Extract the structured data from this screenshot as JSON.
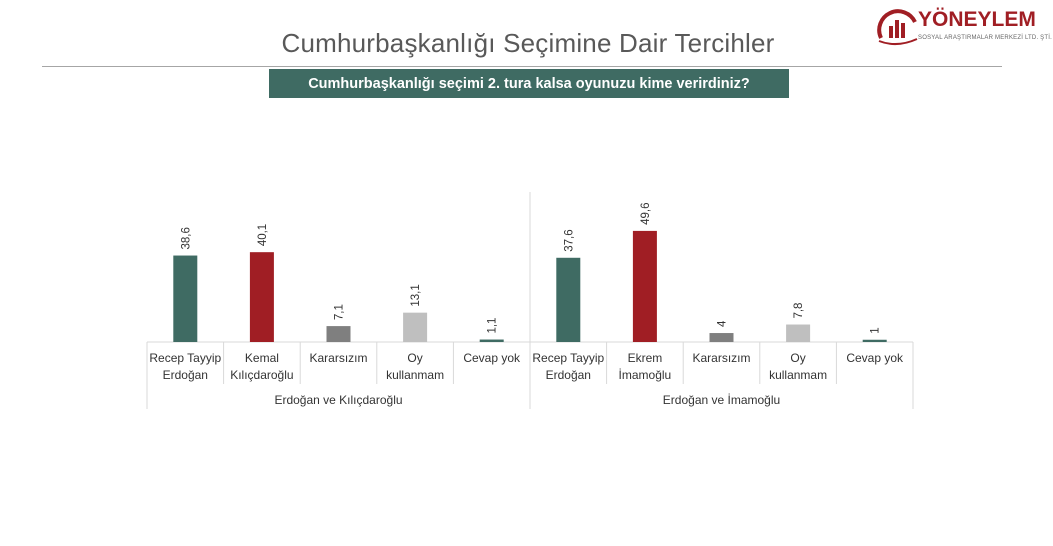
{
  "page": {
    "title": "Cumhurbaşkanlığı Seçimine Dair Tercihler",
    "question": "Cumhurbaşkanlığı seçimi 2. tura kalsa oyunuzu kime verirdiniz?"
  },
  "logo": {
    "name": "YÖNEYLEM",
    "subtitle": "SOSYAL ARAŞTIRMALAR MERKEZİ LTD. ŞTİ."
  },
  "colors": {
    "green": "#3f6b63",
    "red": "#a01e24",
    "dark_gray": "#7f7f7f",
    "light_gray": "#bfbfbf",
    "axis": "#d9d9d9"
  },
  "chart_data": {
    "type": "bar",
    "groups": [
      {
        "label": "Erdoğan ve Kılıçdaroğlu",
        "categories": [
          {
            "label": [
              "Recep Tayyip",
              "Erdoğan"
            ],
            "value": 38.6,
            "display": "38,6",
            "color": "#3f6b63"
          },
          {
            "label": [
              "Kemal",
              "Kılıçdaroğlu"
            ],
            "value": 40.1,
            "display": "40,1",
            "color": "#a01e24"
          },
          {
            "label": [
              "Kararsızım"
            ],
            "value": 7.1,
            "display": "7,1",
            "color": "#7f7f7f"
          },
          {
            "label": [
              "Oy",
              "kullanmam"
            ],
            "value": 13.1,
            "display": "13,1",
            "color": "#bfbfbf"
          },
          {
            "label": [
              "Cevap yok"
            ],
            "value": 1.1,
            "display": "1,1",
            "color": "#3f6b63"
          }
        ]
      },
      {
        "label": "Erdoğan ve İmamoğlu",
        "categories": [
          {
            "label": [
              "Recep Tayyip",
              "Erdoğan"
            ],
            "value": 37.6,
            "display": "37,6",
            "color": "#3f6b63"
          },
          {
            "label": [
              "Ekrem",
              "İmamoğlu"
            ],
            "value": 49.6,
            "display": "49,6",
            "color": "#a01e24"
          },
          {
            "label": [
              "Kararsızım"
            ],
            "value": 4,
            "display": "4",
            "color": "#7f7f7f"
          },
          {
            "label": [
              "Oy",
              "kullanmam"
            ],
            "value": 7.8,
            "display": "7,8",
            "color": "#bfbfbf"
          },
          {
            "label": [
              "Cevap yok"
            ],
            "value": 1,
            "display": "1",
            "color": "#3f6b63"
          }
        ]
      }
    ],
    "ylim": [
      0,
      60
    ],
    "grid": false,
    "legend": "none"
  }
}
